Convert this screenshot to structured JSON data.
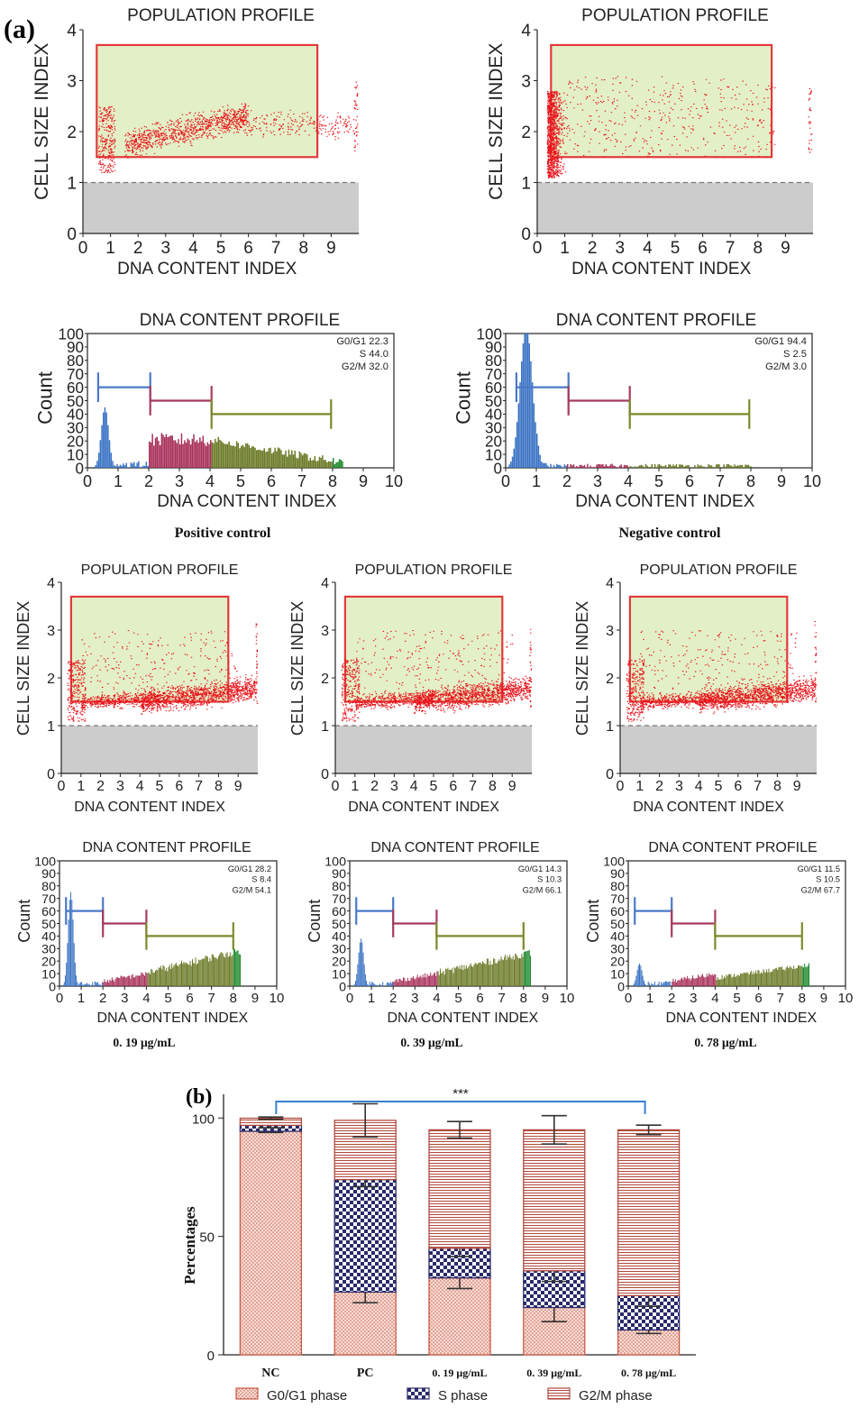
{
  "figure": {
    "panel_a": "(a)",
    "panel_b": "(b)"
  },
  "colors": {
    "scatter": "#e8121a",
    "gate_fill": "#e3f0c7",
    "gate_stroke": "#e23a3a",
    "debris": "#cccccc",
    "g0g1": "#3a73c4",
    "s": "#a8305a",
    "g2m": "#6b7a26",
    "g2m_end": "#1e8a2e",
    "marker_g1": "#4a78c8",
    "marker_s": "#a83a5e",
    "marker_g2": "#7a8a2a",
    "bar_g1": "#c85a46",
    "bar_s": "#2a2a6a",
    "bar_g2": "#b04a3e",
    "bracket": "#3a7fd0"
  },
  "chart_data": [
    {
      "type": "scatter",
      "id": "pop_pc",
      "title": "POPULATION PROFILE",
      "xlabel": "DNA CONTENT INDEX",
      "ylabel": "CELL SIZE INDEX",
      "xlim": [
        0,
        10
      ],
      "ylim": [
        0,
        4
      ],
      "xticks": [
        "0",
        "1",
        "2",
        "3",
        "4",
        "5",
        "6",
        "7",
        "8",
        "9"
      ],
      "yticks": [
        "0",
        "1",
        "2",
        "3",
        "4"
      ],
      "gate": {
        "x": [
          0.5,
          8.5
        ],
        "y": [
          1.5,
          3.7
        ]
      },
      "debris_threshold": 1,
      "distribution": "positive"
    },
    {
      "type": "scatter",
      "id": "pop_nc",
      "title": "POPULATION PROFILE",
      "xlabel": "DNA CONTENT INDEX",
      "ylabel": "CELL SIZE INDEX",
      "xlim": [
        0,
        10
      ],
      "ylim": [
        0,
        4
      ],
      "xticks": [
        "0",
        "1",
        "2",
        "3",
        "4",
        "5",
        "6",
        "7",
        "8",
        "9"
      ],
      "yticks": [
        "0",
        "1",
        "2",
        "3",
        "4"
      ],
      "gate": {
        "x": [
          0.5,
          8.5
        ],
        "y": [
          1.5,
          3.7
        ]
      },
      "debris_threshold": 1,
      "distribution": "negative"
    },
    {
      "type": "histogram",
      "id": "dna_pc",
      "title": "DNA CONTENT PROFILE",
      "xlabel": "DNA CONTENT INDEX",
      "ylabel": "Count",
      "xlim": [
        0,
        10
      ],
      "ylim": [
        0,
        100
      ],
      "xticks": [
        "0",
        "1",
        "2",
        "3",
        "4",
        "5",
        "6",
        "7",
        "8",
        "9",
        "10"
      ],
      "yticks": [
        "0",
        "10",
        "20",
        "30",
        "40",
        "50",
        "60",
        "70",
        "80",
        "90",
        "100"
      ],
      "stats": [
        "G0/G1 22.3",
        "S 44.0",
        "G2/M 32.0"
      ],
      "markers": {
        "g1": [
          0.35,
          2.05,
          60
        ],
        "s": [
          2.05,
          4.05,
          50
        ],
        "g2": [
          4.05,
          7.95,
          40
        ]
      },
      "profile": "pc",
      "caption": "Positive control"
    },
    {
      "type": "histogram",
      "id": "dna_nc",
      "title": "DNA CONTENT PROFILE",
      "xlabel": "DNA CONTENT INDEX",
      "ylabel": "Count",
      "xlim": [
        0,
        10
      ],
      "ylim": [
        0,
        100
      ],
      "xticks": [
        "0",
        "1",
        "2",
        "3",
        "4",
        "5",
        "6",
        "7",
        "8",
        "9",
        "10"
      ],
      "yticks": [
        "0",
        "10",
        "20",
        "30",
        "40",
        "50",
        "60",
        "70",
        "80",
        "90",
        "100"
      ],
      "stats": [
        "G0/G1 94.4",
        "S 2.5",
        "G2/M 3.0"
      ],
      "markers": {
        "g1": [
          0.35,
          2.05,
          60
        ],
        "s": [
          2.05,
          4.05,
          50
        ],
        "g2": [
          4.05,
          7.95,
          40
        ]
      },
      "profile": "nc",
      "caption": "Negative control"
    },
    {
      "type": "scatter",
      "id": "pop_019",
      "title": "POPULATION PROFILE",
      "xlabel": "DNA CONTENT INDEX",
      "ylabel": "CELL SIZE INDEX",
      "xlim": [
        0,
        10
      ],
      "ylim": [
        0,
        4
      ],
      "xticks": [
        "0",
        "1",
        "2",
        "3",
        "4",
        "5",
        "6",
        "7",
        "8",
        "9"
      ],
      "yticks": [
        "0",
        "1",
        "2",
        "3",
        "4"
      ],
      "gate": {
        "x": [
          0.5,
          8.5
        ],
        "y": [
          1.5,
          3.7
        ]
      },
      "debris_threshold": 1,
      "distribution": "treated"
    },
    {
      "type": "scatter",
      "id": "pop_039",
      "title": "POPULATION PROFILE",
      "xlabel": "DNA CONTENT INDEX",
      "ylabel": "CELL SIZE INDEX",
      "xlim": [
        0,
        10
      ],
      "ylim": [
        0,
        4
      ],
      "xticks": [
        "0",
        "1",
        "2",
        "3",
        "4",
        "5",
        "6",
        "7",
        "8",
        "9"
      ],
      "yticks": [
        "0",
        "1",
        "2",
        "3",
        "4"
      ],
      "gate": {
        "x": [
          0.5,
          8.5
        ],
        "y": [
          1.5,
          3.7
        ]
      },
      "debris_threshold": 1,
      "distribution": "treated"
    },
    {
      "type": "scatter",
      "id": "pop_078",
      "title": "POPULATION PROFILE",
      "xlabel": "DNA CONTENT INDEX",
      "ylabel": "CELL SIZE INDEX",
      "xlim": [
        0,
        10
      ],
      "ylim": [
        0,
        4
      ],
      "xticks": [
        "0",
        "1",
        "2",
        "3",
        "4",
        "5",
        "6",
        "7",
        "8",
        "9"
      ],
      "yticks": [
        "0",
        "1",
        "2",
        "3",
        "4"
      ],
      "gate": {
        "x": [
          0.5,
          8.5
        ],
        "y": [
          1.5,
          3.7
        ]
      },
      "debris_threshold": 1,
      "distribution": "treated"
    },
    {
      "type": "histogram",
      "id": "dna_019",
      "title": "DNA CONTENT PROFILE",
      "xlabel": "DNA CONTENT INDEX",
      "ylabel": "Count",
      "xlim": [
        0,
        10
      ],
      "ylim": [
        0,
        100
      ],
      "xticks": [
        "0",
        "1",
        "2",
        "3",
        "4",
        "5",
        "6",
        "7",
        "8",
        "9",
        "10"
      ],
      "yticks": [
        "0",
        "10",
        "20",
        "30",
        "40",
        "50",
        "60",
        "70",
        "80",
        "90",
        "100"
      ],
      "stats": [
        "G0/G1 28.2",
        "S 8.4",
        "G2/M 54.1"
      ],
      "markers": {
        "g1": [
          0.3,
          2.0,
          60
        ],
        "s": [
          2.0,
          4.0,
          50
        ],
        "g2": [
          4.0,
          8.0,
          40
        ]
      },
      "profile": "t1",
      "caption": "0. 19 μg/mL"
    },
    {
      "type": "histogram",
      "id": "dna_039",
      "title": "DNA CONTENT PROFILE",
      "xlabel": "DNA CONTENT INDEX",
      "ylabel": "Count",
      "xlim": [
        0,
        10
      ],
      "ylim": [
        0,
        100
      ],
      "xticks": [
        "0",
        "1",
        "2",
        "3",
        "4",
        "5",
        "6",
        "7",
        "8",
        "9",
        "10"
      ],
      "yticks": [
        "0",
        "10",
        "20",
        "30",
        "40",
        "50",
        "60",
        "70",
        "80",
        "90",
        "100"
      ],
      "stats": [
        "G0/G1 14.3",
        "S 10.3",
        "G2/M 66.1"
      ],
      "markers": {
        "g1": [
          0.3,
          2.0,
          60
        ],
        "s": [
          2.0,
          4.0,
          50
        ],
        "g2": [
          4.0,
          8.0,
          40
        ]
      },
      "profile": "t2",
      "caption": "0. 39 μg/mL"
    },
    {
      "type": "histogram",
      "id": "dna_078",
      "title": "DNA CONTENT PROFILE",
      "xlabel": "DNA CONTENT INDEX",
      "ylabel": "Count",
      "xlim": [
        0,
        10
      ],
      "ylim": [
        0,
        100
      ],
      "xticks": [
        "0",
        "1",
        "2",
        "3",
        "4",
        "5",
        "6",
        "7",
        "8",
        "9",
        "10"
      ],
      "yticks": [
        "0",
        "10",
        "20",
        "30",
        "40",
        "50",
        "60",
        "70",
        "80",
        "90",
        "100"
      ],
      "stats": [
        "G0/G1 11.5",
        "S 10.5",
        "G2/M 67.7"
      ],
      "markers": {
        "g1": [
          0.3,
          2.0,
          60
        ],
        "s": [
          2.0,
          4.0,
          50
        ],
        "g2": [
          4.0,
          8.0,
          40
        ]
      },
      "profile": "t3",
      "caption": "0. 78 μg/mL"
    },
    {
      "type": "bar",
      "id": "stacked",
      "stacked": true,
      "ylabel": "Percentages",
      "ylim": [
        0,
        110
      ],
      "yticks": [
        "0",
        "50",
        "100"
      ],
      "categories": [
        "NC",
        "PC",
        "0. 19 μg/mL",
        "0. 39 μg/mL",
        "0. 78 μg/mL"
      ],
      "series": [
        {
          "name": "G0/G1 phase",
          "values": [
            94.4,
            26.5,
            32.5,
            20.0,
            10.5
          ],
          "errors": [
            0.5,
            4.5,
            4.5,
            6.0,
            1.5
          ]
        },
        {
          "name": "S phase",
          "values": [
            2.5,
            47.5,
            12.5,
            15.5,
            14.5
          ],
          "errors": [
            1.0,
            3.0,
            3.5,
            4.5,
            4.5
          ]
        },
        {
          "name": "G2/M phase",
          "values": [
            3.0,
            25.0,
            50.0,
            59.5,
            70.0
          ],
          "errors": [
            0.5,
            7.0,
            3.5,
            6.0,
            2.0
          ]
        }
      ],
      "significance": "***"
    }
  ]
}
